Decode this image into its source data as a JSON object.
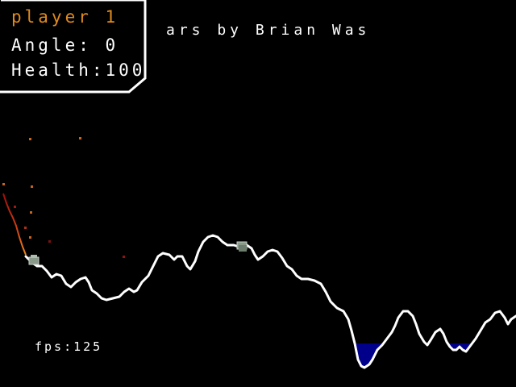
{
  "hud": {
    "player_name": "player 1",
    "angle_label": "Angle:",
    "angle_value": "0",
    "health_label": "Health:",
    "health_value": "100",
    "player_color": "#e08a1e",
    "border_color": "#ffffff"
  },
  "scroll_text": "ars by Brian Was",
  "fps_label": "fps:",
  "fps_value": "125",
  "colors": {
    "background": "#000000",
    "terrain_line": "#ffffff",
    "water": "#00008b",
    "tank": "#8a9a8a",
    "trail_start": "#b01010",
    "trail_end": "#e07818",
    "particle": "#c8641e"
  }
}
